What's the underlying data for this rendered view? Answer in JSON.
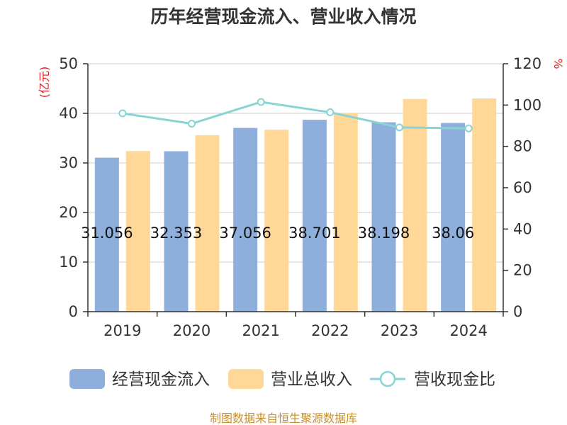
{
  "chart_data": {
    "type": "bar",
    "title": "历年经营现金流入、营业收入情况",
    "categories": [
      "2019",
      "2020",
      "2021",
      "2022",
      "2023",
      "2024"
    ],
    "series": [
      {
        "name": "经营现金流入",
        "kind": "bar",
        "axis": "left",
        "color": "#8eaedb",
        "values": [
          31.056,
          32.353,
          37.056,
          38.701,
          38.198,
          38.06
        ],
        "labels": [
          "31.056",
          "32.353",
          "37.056",
          "38.701",
          "38.198",
          "38.06"
        ]
      },
      {
        "name": "营业总收入",
        "kind": "bar",
        "axis": "left",
        "color": "#ffd898",
        "values": [
          32.4,
          35.6,
          36.7,
          40.1,
          42.9,
          43.0
        ]
      },
      {
        "name": "营收现金比",
        "kind": "line",
        "axis": "right",
        "color": "#88d3d6",
        "values": [
          96,
          91,
          101.5,
          96.5,
          89.2,
          88.7
        ]
      }
    ],
    "y_left": {
      "unit": "(亿元)",
      "min": 0,
      "max": 50,
      "ticks": [
        0,
        10,
        20,
        30,
        40,
        50
      ]
    },
    "y_right": {
      "unit": "%",
      "min": 0,
      "max": 120,
      "ticks": [
        0,
        20,
        40,
        60,
        80,
        100,
        120
      ]
    },
    "grid": true,
    "legend_position": "bottom"
  },
  "source_text": "制图数据来自恒生聚源数据库"
}
